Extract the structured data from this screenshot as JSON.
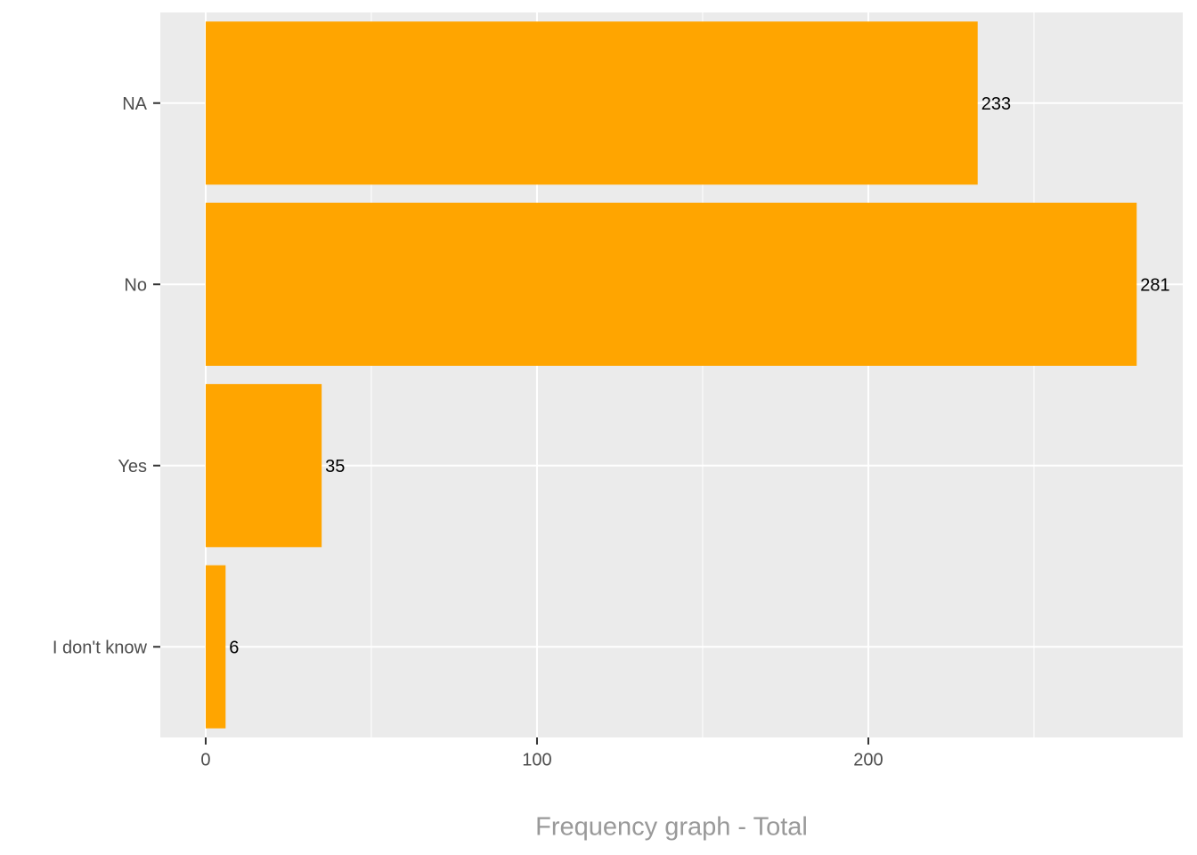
{
  "chart_data": {
    "type": "bar",
    "orientation": "horizontal",
    "categories": [
      "NA",
      "No",
      "Yes",
      "I don't know"
    ],
    "values": [
      233,
      281,
      35,
      6
    ],
    "color": "#ffa500",
    "xlim": [
      -13.7,
      294.9
    ],
    "xticks": [
      0,
      100,
      200
    ],
    "minor_xticks": [
      50,
      150,
      250
    ],
    "grid": true,
    "x_label": "Frequency graph - Total"
  }
}
